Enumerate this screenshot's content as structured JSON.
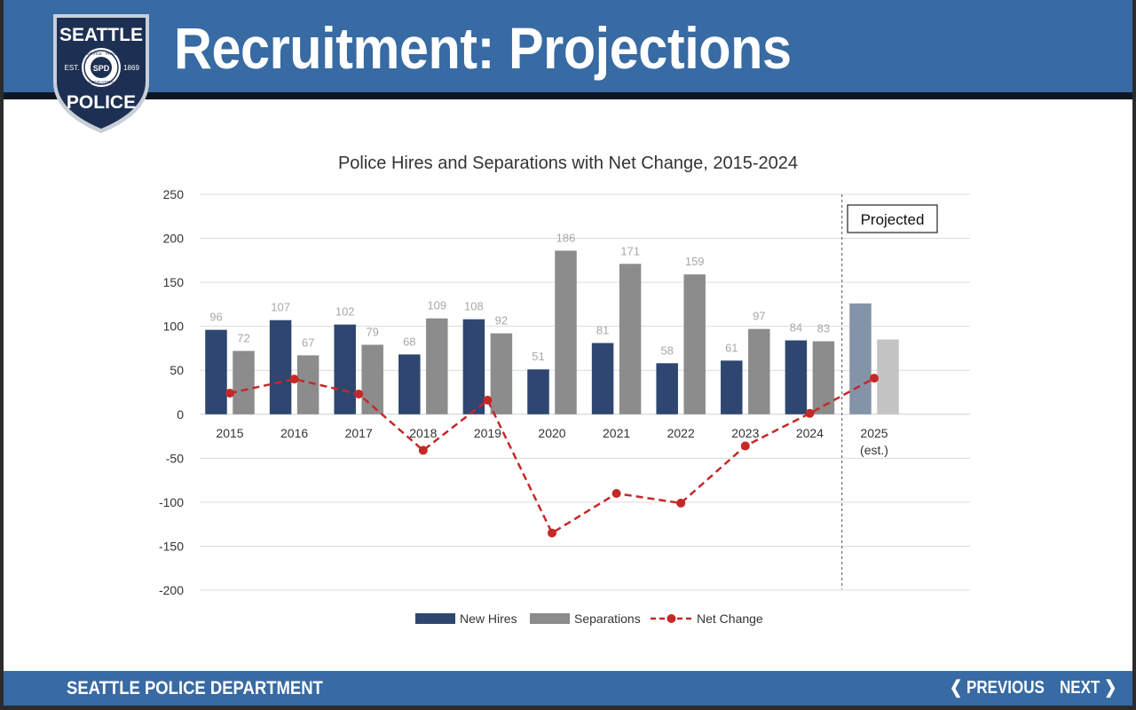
{
  "header": {
    "title": "Recruitment: Projections",
    "badge": {
      "top": "SEATTLE",
      "bottom": "POLICE",
      "est_left": "EST.",
      "est_right": "1869",
      "ring_top": "SERVICE · PRIDE",
      "ring_bottom": "DEDICATION",
      "monogram": "SPD"
    }
  },
  "footer": {
    "department": "SEATTLE POLICE DEPARTMENT",
    "previous_label": "PREVIOUS",
    "next_label": "NEXT"
  },
  "colors": {
    "header_blue": "#386aa3",
    "hires": "#2e4670",
    "separations": "#8c8c8c",
    "net": "#c62828",
    "hires_projected": "#8494a8",
    "separations_projected": "#c4c4c4"
  },
  "chart_data": {
    "type": "bar",
    "title": "Police Hires and Separations with Net Change, 2015-2024",
    "categories": [
      "2015",
      "2016",
      "2017",
      "2018",
      "2019",
      "2020",
      "2021",
      "2022",
      "2023",
      "2024",
      "2025\n(est.)"
    ],
    "series": [
      {
        "name": "New Hires",
        "type": "bar",
        "values": [
          96,
          107,
          102,
          68,
          108,
          51,
          81,
          58,
          61,
          84,
          126
        ],
        "labels": [
          "96",
          "107",
          "102",
          "68",
          "108",
          "51",
          "81",
          "58",
          "61",
          "84",
          ""
        ]
      },
      {
        "name": "Separations",
        "type": "bar",
        "values": [
          72,
          67,
          79,
          109,
          92,
          186,
          171,
          159,
          97,
          83,
          85
        ],
        "labels": [
          "72",
          "67",
          "79",
          "109",
          "92",
          "186",
          "171",
          "159",
          "97",
          "83",
          ""
        ]
      },
      {
        "name": "Net Change",
        "type": "line",
        "style": "dashed",
        "values": [
          24,
          40,
          23,
          -41,
          16,
          -135,
          -90,
          -101,
          -36,
          1,
          41
        ]
      }
    ],
    "yticks": [
      250,
      200,
      150,
      100,
      50,
      0,
      -50,
      -100,
      -150,
      -200
    ],
    "ylim": [
      -200,
      250
    ],
    "projected_from_index": 10,
    "projected_label": "Projected",
    "legend": [
      "New Hires",
      "Separations",
      "Net Change"
    ],
    "legend_position": "bottom",
    "grid": true
  }
}
